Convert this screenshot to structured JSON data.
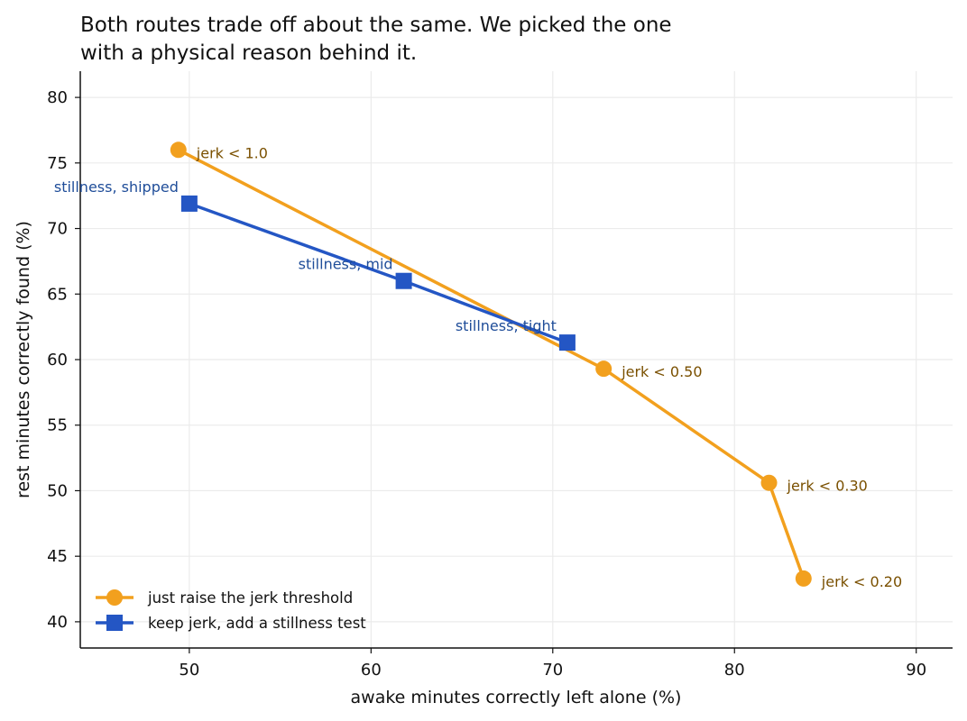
{
  "chart_data": {
    "type": "line",
    "title_lines": [
      "Both routes trade off about the same. We picked the one",
      "with a physical reason behind it."
    ],
    "xlabel": "awake minutes correctly left alone (%)",
    "ylabel": "rest minutes correctly found (%)",
    "xlim": [
      44,
      92
    ],
    "ylim": [
      38,
      82
    ],
    "xticks": [
      50,
      60,
      70,
      80,
      90
    ],
    "yticks": [
      40,
      45,
      50,
      55,
      60,
      65,
      70,
      75,
      80
    ],
    "grid": true,
    "legend_position": "lower-left",
    "series": [
      {
        "name": "just raise the jerk threshold",
        "marker": "circle",
        "color": "#f2a01e",
        "label_color": "#7a5000",
        "points": [
          {
            "x": 49.4,
            "y": 76.0,
            "label": "jerk < 1.0",
            "label_side": "right"
          },
          {
            "x": 72.8,
            "y": 59.3,
            "label": "jerk < 0.50",
            "label_side": "right"
          },
          {
            "x": 81.9,
            "y": 50.6,
            "label": "jerk < 0.30",
            "label_side": "right"
          },
          {
            "x": 83.8,
            "y": 43.3,
            "label": "jerk < 0.20",
            "label_side": "right"
          }
        ]
      },
      {
        "name": "keep jerk, add a stillness test",
        "marker": "square",
        "color": "#2456c4",
        "label_color": "#1f4d99",
        "points": [
          {
            "x": 50.0,
            "y": 71.9,
            "label": "stillness, shipped",
            "label_side": "left"
          },
          {
            "x": 61.8,
            "y": 66.0,
            "label": "stillness, mid",
            "label_side": "left"
          },
          {
            "x": 70.8,
            "y": 61.3,
            "label": "stillness, tight",
            "label_side": "left"
          }
        ]
      }
    ]
  }
}
